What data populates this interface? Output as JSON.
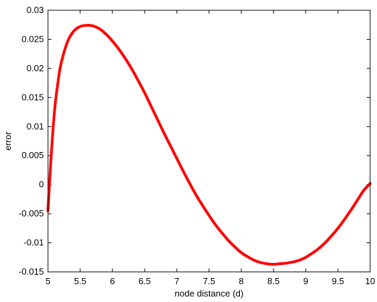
{
  "chart_data": {
    "type": "scatter",
    "title": "",
    "xlabel": "node distance (d)",
    "ylabel": "error",
    "xlim": [
      5,
      10
    ],
    "ylim": [
      -0.015,
      0.03
    ],
    "grid": false,
    "marker_color": "#ff0000",
    "x_ticks": [
      "5",
      "5.5",
      "6",
      "6.5",
      "7",
      "7.5",
      "8",
      "8.5",
      "9",
      "9.5",
      "10"
    ],
    "y_ticks": [
      "-0.015",
      "-0.01",
      "-0.005",
      "0",
      "0.005",
      "0.01",
      "0.015",
      "0.02",
      "0.025",
      "0.03"
    ],
    "series": [
      {
        "x": [
          5.0,
          5.05,
          5.1,
          5.15,
          5.2,
          5.3,
          5.4,
          5.5,
          5.6,
          5.7,
          5.8,
          5.9,
          6.0,
          6.1,
          6.2,
          6.3,
          6.4,
          6.5,
          6.6,
          6.7,
          6.8,
          6.9,
          7.0,
          7.1,
          7.2,
          7.3,
          7.4,
          7.5,
          7.6,
          7.7,
          7.8,
          7.9,
          8.0,
          8.1,
          8.2,
          8.3,
          8.4,
          8.5,
          8.6,
          8.7,
          8.8,
          8.9,
          9.0,
          9.1,
          9.2,
          9.3,
          9.4,
          9.5,
          9.6,
          9.7,
          9.8,
          9.9,
          10.0
        ],
        "y": [
          -0.0045,
          0.005,
          0.0125,
          0.0172,
          0.0207,
          0.0245,
          0.0264,
          0.0272,
          0.0274,
          0.0273,
          0.0268,
          0.0259,
          0.0247,
          0.0233,
          0.0217,
          0.0199,
          0.0179,
          0.0158,
          0.0135,
          0.0112,
          0.0089,
          0.0067,
          0.0045,
          0.0023,
          0.0002,
          -0.0018,
          -0.0036,
          -0.0053,
          -0.0069,
          -0.0083,
          -0.0096,
          -0.0107,
          -0.0117,
          -0.0124,
          -0.013,
          -0.0134,
          -0.0136,
          -0.0137,
          -0.0136,
          -0.0135,
          -0.0133,
          -0.013,
          -0.0125,
          -0.0118,
          -0.011,
          -0.01,
          -0.0088,
          -0.0075,
          -0.006,
          -0.0044,
          -0.0027,
          -0.001,
          0.0002
        ]
      }
    ]
  }
}
